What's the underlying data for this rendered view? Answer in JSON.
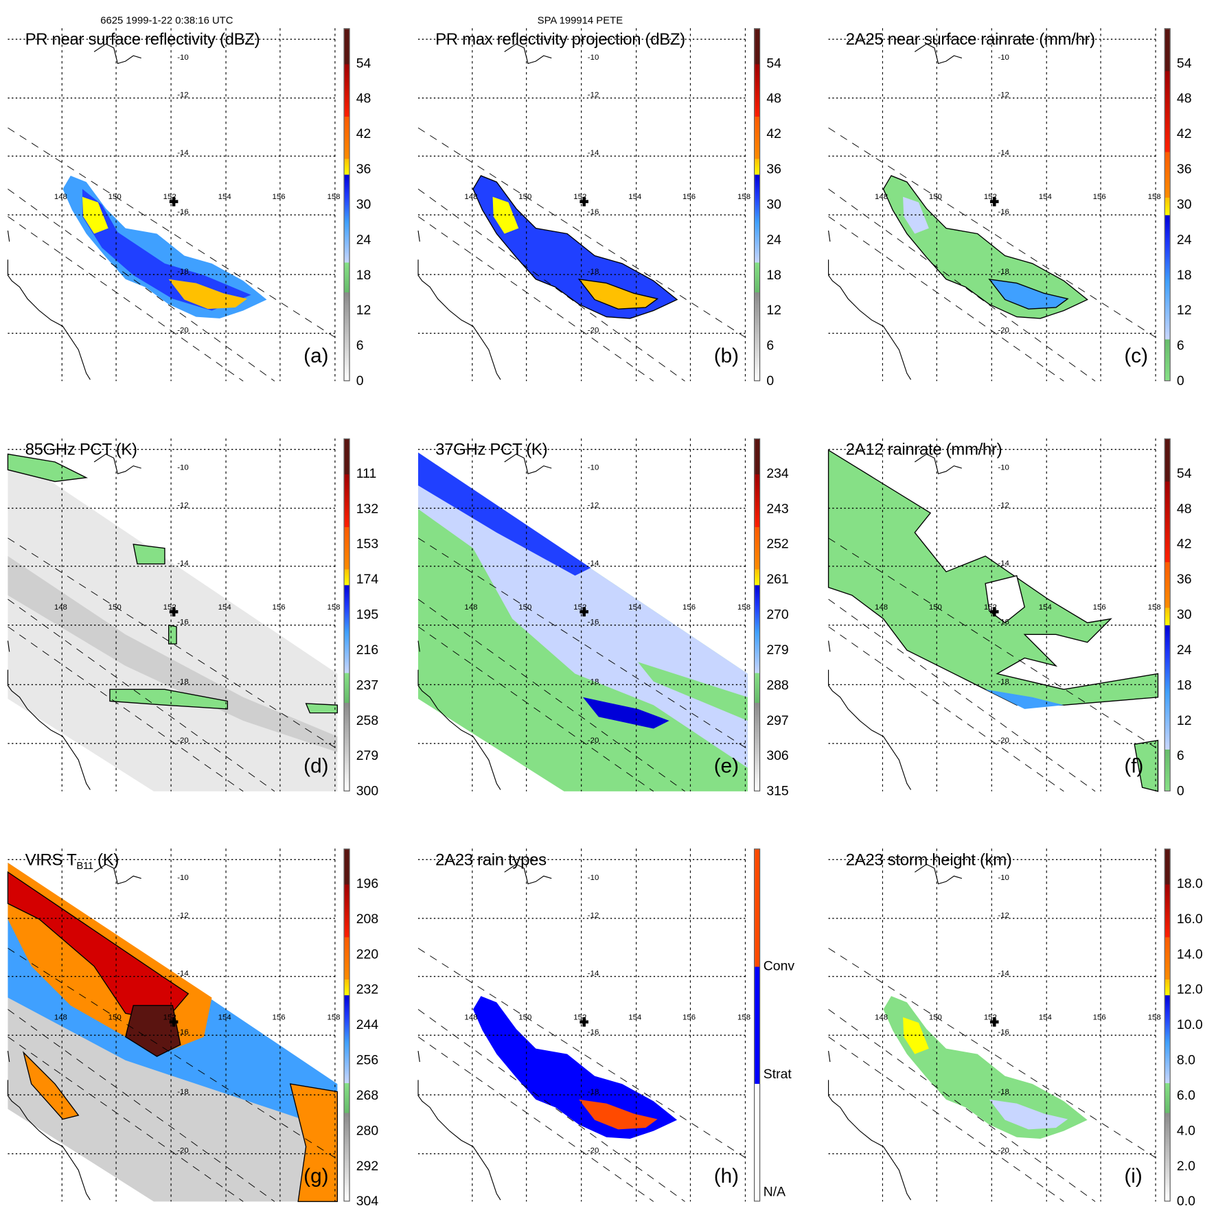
{
  "header": {
    "orbit_time": "6625 1999-1-22 0:38:16 UTC",
    "storm_id": "SPA 199914 PETE"
  },
  "axes": {
    "lon_labels": [
      "148",
      "150",
      "152",
      "154",
      "156",
      "158"
    ],
    "lat_labels": [
      "-10",
      "-12",
      "-14",
      "-16",
      "-18",
      "-20"
    ]
  },
  "colors": {
    "dbz_scale": [
      "#ffffff",
      "#bdbdbd",
      "#8a8a8a",
      "#66bb6a",
      "#86e086",
      "#c8d6ff",
      "#3fa0ff",
      "#2040ff",
      "#0000d8",
      "#ffff00",
      "#ffc000",
      "#ff8c00",
      "#ff5a00",
      "#ff2000",
      "#d40000",
      "#a00000",
      "#5a1410"
    ],
    "rain_type": [
      "#ffffff",
      "#0000ff",
      "#ff4a00"
    ],
    "coast": "#000000"
  },
  "panels": [
    {
      "title": "PR near surface reflectivity (dBZ)",
      "label": "(a)",
      "colorbar": [
        "0",
        "6",
        "12",
        "18",
        "24",
        "30",
        "36",
        "42",
        "48",
        "54"
      ]
    },
    {
      "title": "PR max reflectivity projection (dBZ)",
      "label": "(b)",
      "colorbar": [
        "0",
        "6",
        "12",
        "18",
        "24",
        "30",
        "36",
        "42",
        "48",
        "54"
      ]
    },
    {
      "title": "2A25 near surface rainrate (mm/hr)",
      "label": "(c)",
      "colorbar": [
        "0",
        "6",
        "12",
        "18",
        "24",
        "30",
        "36",
        "42",
        "48",
        "54"
      ]
    },
    {
      "title": "85GHz PCT (K)",
      "label": "(d)",
      "colorbar": [
        "300",
        "279",
        "258",
        "237",
        "216",
        "195",
        "174",
        "153",
        "132",
        "111"
      ]
    },
    {
      "title": "37GHz PCT (K)",
      "label": "(e)",
      "colorbar": [
        "315",
        "306",
        "297",
        "288",
        "279",
        "270",
        "261",
        "252",
        "243",
        "234"
      ]
    },
    {
      "title": "2A12 rainrate (mm/hr)",
      "label": "(f)",
      "colorbar": [
        "0",
        "6",
        "12",
        "18",
        "24",
        "30",
        "36",
        "42",
        "48",
        "54"
      ]
    },
    {
      "title": "VIRS T",
      "title_sub": "B11",
      "title_unit": " (K)",
      "label": "(g)",
      "colorbar": [
        "304",
        "292",
        "280",
        "268",
        "256",
        "244",
        "232",
        "220",
        "208",
        "196"
      ]
    },
    {
      "title": "2A23 rain types",
      "label": "(h)",
      "colorbar": [
        "N/A",
        "Strat",
        "Conv"
      ]
    },
    {
      "title": "2A23 storm height (km)",
      "label": "(i)",
      "colorbar": [
        "0.0",
        "2.0",
        "4.0",
        "6.0",
        "8.0",
        "10.0",
        "12.0",
        "14.0",
        "16.0",
        "18.0"
      ]
    }
  ]
}
